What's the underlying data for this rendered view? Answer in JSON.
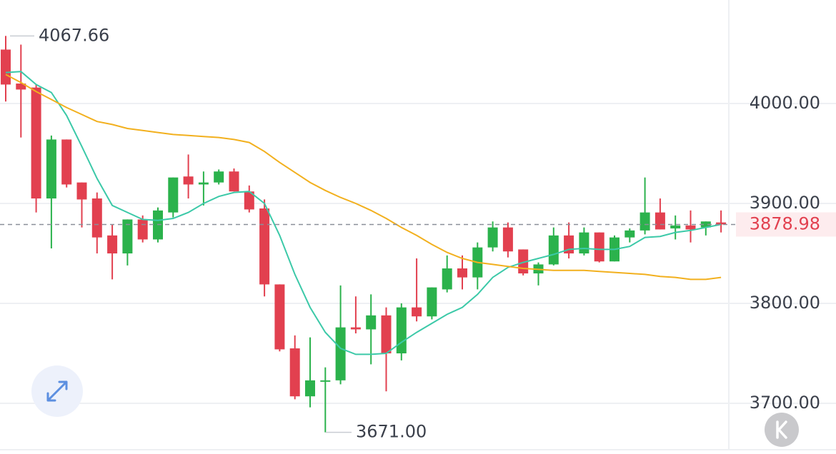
{
  "chart_data": {
    "type": "candlestick",
    "up_color": "#2bb24c",
    "down_color": "#e2404f",
    "open": [
      4054,
      4020,
      4016,
      3905,
      3964,
      3921,
      3905,
      3868,
      3850,
      3884,
      3864,
      3891,
      3927,
      3919,
      3921,
      3932,
      3912,
      3895,
      3819,
      3755,
      3707,
      3722,
      3723,
      3776,
      3774,
      3788,
      3750,
      3796,
      3787,
      3814,
      3835,
      3826,
      3856,
      3876,
      3854,
      3830,
      3839,
      3868,
      3850,
      3871,
      3842,
      3866,
      3873,
      3891,
      3875,
      3878,
      3876,
      3881
    ],
    "high": [
      4067.66,
      4059,
      4019,
      3968,
      3964,
      3921,
      3911,
      3879,
      3884,
      3888,
      3896,
      3926,
      3949,
      3932,
      3934,
      3935,
      3918,
      3904,
      3819,
      3768,
      3766,
      3736,
      3818,
      3807,
      3809,
      3796,
      3800,
      3845,
      3816,
      3848,
      3848,
      3861,
      3882,
      3881,
      3854,
      3841,
      3876,
      3881,
      3876,
      3871,
      3868,
      3875,
      3926,
      3905,
      3888,
      3893,
      3882,
      3893
    ],
    "low": [
      4002,
      3966,
      3891,
      3855,
      3916,
      3876,
      3850,
      3824,
      3838,
      3861,
      3861,
      3886,
      3905,
      3898,
      3919,
      3912,
      3891,
      3807,
      3752,
      3704,
      3696,
      3671,
      3719,
      3770,
      3739,
      3712,
      3743,
      3782,
      3784,
      3811,
      3814,
      3814,
      3852,
      3846,
      3828,
      3818,
      3838,
      3845,
      3848,
      3841,
      3842,
      3861,
      3869,
      3874,
      3864,
      3861,
      3868,
      3871
    ],
    "close": [
      4019,
      4014,
      3905,
      3964,
      3919,
      3904,
      3866,
      3850,
      3884,
      3864,
      3893,
      3926,
      3919,
      3921,
      3932,
      3912,
      3894,
      3819,
      3754,
      3707,
      3723,
      3723,
      3776,
      3774,
      3788,
      3750,
      3796,
      3787,
      3816,
      3835,
      3826,
      3856,
      3876,
      3852,
      3830,
      3839,
      3868,
      3850,
      3871,
      3842,
      3866,
      3873,
      3891,
      3874,
      3878,
      3874,
      3882,
      3878.98
    ],
    "lines": [
      {
        "color": "#3cc9a8",
        "values": [
          4031,
          4032,
          4019,
          4011,
          3988,
          3957,
          3925,
          3898,
          3891,
          3884,
          3883,
          3885,
          3891,
          3900,
          3907,
          3911,
          3912,
          3900,
          3868,
          3829,
          3796,
          3771,
          3755,
          3749,
          3749,
          3750,
          3761,
          3771,
          3780,
          3789,
          3796,
          3809,
          3826,
          3836,
          3841,
          3845,
          3849,
          3854,
          3855,
          3854,
          3854,
          3857,
          3866,
          3867,
          3871,
          3873,
          3876,
          3879
        ]
      },
      {
        "color": "#f2b01e",
        "values": [
          4029,
          4021,
          4012,
          4004,
          3996,
          3989,
          3982,
          3979,
          3975,
          3973,
          3971,
          3969,
          3968,
          3967,
          3966,
          3964,
          3961,
          3952,
          3941,
          3931,
          3921,
          3913,
          3906,
          3900,
          3893,
          3885,
          3876,
          3868,
          3859,
          3851,
          3845,
          3841,
          3839,
          3837,
          3835,
          3834,
          3833,
          3833,
          3833,
          3832,
          3831,
          3830,
          3829,
          3827,
          3826,
          3824,
          3824,
          3826
        ]
      }
    ],
    "ylim": [
      3649.3,
      4103.6
    ],
    "yticks": [
      {
        "value": 3700,
        "label": "3700.00"
      },
      {
        "value": 3800,
        "label": "3800.00"
      },
      {
        "value": 3900,
        "label": "3900.00"
      },
      {
        "value": 4000,
        "label": "4000.00"
      }
    ],
    "grid": true,
    "high_label": {
      "value": 4067.66,
      "label": "4067.66"
    },
    "low_label": {
      "value": 3671,
      "label": "3671.00"
    },
    "last_price": {
      "value": 3878.98,
      "label": "3878.98"
    }
  }
}
